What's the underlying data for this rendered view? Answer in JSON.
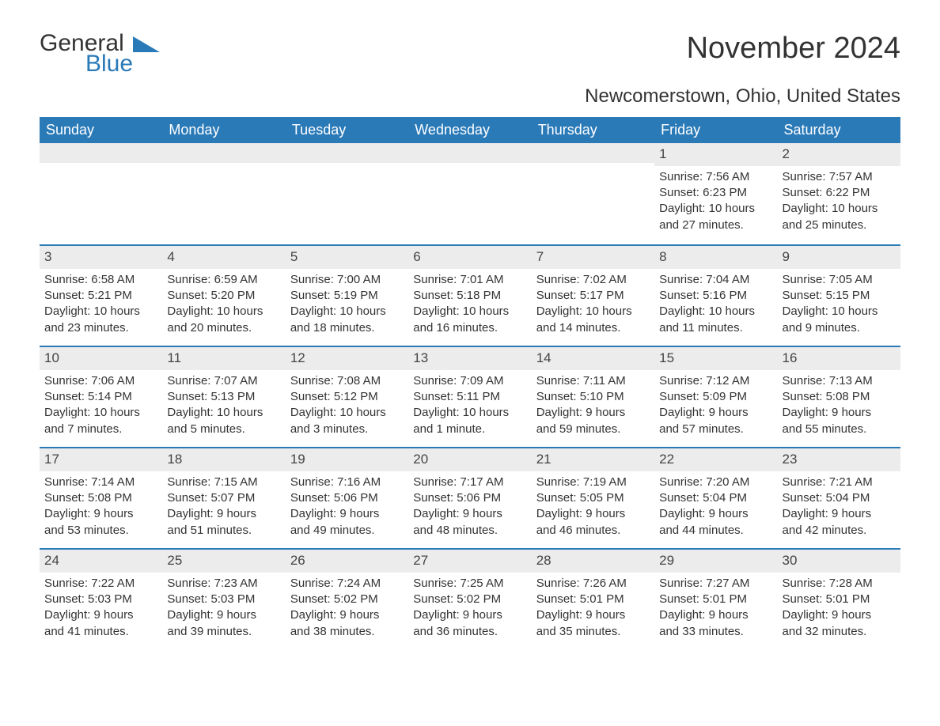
{
  "logo": {
    "general": "General",
    "blue": "Blue"
  },
  "title": "November 2024",
  "location": "Newcomerstown, Ohio, United States",
  "colors": {
    "header_bg": "#2a7ab8",
    "header_text": "#ffffff",
    "daynum_bg": "#ececec",
    "text": "#333333",
    "rule": "#2a7ab8"
  },
  "day_headers": [
    "Sunday",
    "Monday",
    "Tuesday",
    "Wednesday",
    "Thursday",
    "Friday",
    "Saturday"
  ],
  "weeks": [
    [
      null,
      null,
      null,
      null,
      null,
      {
        "n": "1",
        "sr": "Sunrise: 7:56 AM",
        "ss": "Sunset: 6:23 PM",
        "dl1": "Daylight: 10 hours",
        "dl2": "and 27 minutes."
      },
      {
        "n": "2",
        "sr": "Sunrise: 7:57 AM",
        "ss": "Sunset: 6:22 PM",
        "dl1": "Daylight: 10 hours",
        "dl2": "and 25 minutes."
      }
    ],
    [
      {
        "n": "3",
        "sr": "Sunrise: 6:58 AM",
        "ss": "Sunset: 5:21 PM",
        "dl1": "Daylight: 10 hours",
        "dl2": "and 23 minutes."
      },
      {
        "n": "4",
        "sr": "Sunrise: 6:59 AM",
        "ss": "Sunset: 5:20 PM",
        "dl1": "Daylight: 10 hours",
        "dl2": "and 20 minutes."
      },
      {
        "n": "5",
        "sr": "Sunrise: 7:00 AM",
        "ss": "Sunset: 5:19 PM",
        "dl1": "Daylight: 10 hours",
        "dl2": "and 18 minutes."
      },
      {
        "n": "6",
        "sr": "Sunrise: 7:01 AM",
        "ss": "Sunset: 5:18 PM",
        "dl1": "Daylight: 10 hours",
        "dl2": "and 16 minutes."
      },
      {
        "n": "7",
        "sr": "Sunrise: 7:02 AM",
        "ss": "Sunset: 5:17 PM",
        "dl1": "Daylight: 10 hours",
        "dl2": "and 14 minutes."
      },
      {
        "n": "8",
        "sr": "Sunrise: 7:04 AM",
        "ss": "Sunset: 5:16 PM",
        "dl1": "Daylight: 10 hours",
        "dl2": "and 11 minutes."
      },
      {
        "n": "9",
        "sr": "Sunrise: 7:05 AM",
        "ss": "Sunset: 5:15 PM",
        "dl1": "Daylight: 10 hours",
        "dl2": "and 9 minutes."
      }
    ],
    [
      {
        "n": "10",
        "sr": "Sunrise: 7:06 AM",
        "ss": "Sunset: 5:14 PM",
        "dl1": "Daylight: 10 hours",
        "dl2": "and 7 minutes."
      },
      {
        "n": "11",
        "sr": "Sunrise: 7:07 AM",
        "ss": "Sunset: 5:13 PM",
        "dl1": "Daylight: 10 hours",
        "dl2": "and 5 minutes."
      },
      {
        "n": "12",
        "sr": "Sunrise: 7:08 AM",
        "ss": "Sunset: 5:12 PM",
        "dl1": "Daylight: 10 hours",
        "dl2": "and 3 minutes."
      },
      {
        "n": "13",
        "sr": "Sunrise: 7:09 AM",
        "ss": "Sunset: 5:11 PM",
        "dl1": "Daylight: 10 hours",
        "dl2": "and 1 minute."
      },
      {
        "n": "14",
        "sr": "Sunrise: 7:11 AM",
        "ss": "Sunset: 5:10 PM",
        "dl1": "Daylight: 9 hours",
        "dl2": "and 59 minutes."
      },
      {
        "n": "15",
        "sr": "Sunrise: 7:12 AM",
        "ss": "Sunset: 5:09 PM",
        "dl1": "Daylight: 9 hours",
        "dl2": "and 57 minutes."
      },
      {
        "n": "16",
        "sr": "Sunrise: 7:13 AM",
        "ss": "Sunset: 5:08 PM",
        "dl1": "Daylight: 9 hours",
        "dl2": "and 55 minutes."
      }
    ],
    [
      {
        "n": "17",
        "sr": "Sunrise: 7:14 AM",
        "ss": "Sunset: 5:08 PM",
        "dl1": "Daylight: 9 hours",
        "dl2": "and 53 minutes."
      },
      {
        "n": "18",
        "sr": "Sunrise: 7:15 AM",
        "ss": "Sunset: 5:07 PM",
        "dl1": "Daylight: 9 hours",
        "dl2": "and 51 minutes."
      },
      {
        "n": "19",
        "sr": "Sunrise: 7:16 AM",
        "ss": "Sunset: 5:06 PM",
        "dl1": "Daylight: 9 hours",
        "dl2": "and 49 minutes."
      },
      {
        "n": "20",
        "sr": "Sunrise: 7:17 AM",
        "ss": "Sunset: 5:06 PM",
        "dl1": "Daylight: 9 hours",
        "dl2": "and 48 minutes."
      },
      {
        "n": "21",
        "sr": "Sunrise: 7:19 AM",
        "ss": "Sunset: 5:05 PM",
        "dl1": "Daylight: 9 hours",
        "dl2": "and 46 minutes."
      },
      {
        "n": "22",
        "sr": "Sunrise: 7:20 AM",
        "ss": "Sunset: 5:04 PM",
        "dl1": "Daylight: 9 hours",
        "dl2": "and 44 minutes."
      },
      {
        "n": "23",
        "sr": "Sunrise: 7:21 AM",
        "ss": "Sunset: 5:04 PM",
        "dl1": "Daylight: 9 hours",
        "dl2": "and 42 minutes."
      }
    ],
    [
      {
        "n": "24",
        "sr": "Sunrise: 7:22 AM",
        "ss": "Sunset: 5:03 PM",
        "dl1": "Daylight: 9 hours",
        "dl2": "and 41 minutes."
      },
      {
        "n": "25",
        "sr": "Sunrise: 7:23 AM",
        "ss": "Sunset: 5:03 PM",
        "dl1": "Daylight: 9 hours",
        "dl2": "and 39 minutes."
      },
      {
        "n": "26",
        "sr": "Sunrise: 7:24 AM",
        "ss": "Sunset: 5:02 PM",
        "dl1": "Daylight: 9 hours",
        "dl2": "and 38 minutes."
      },
      {
        "n": "27",
        "sr": "Sunrise: 7:25 AM",
        "ss": "Sunset: 5:02 PM",
        "dl1": "Daylight: 9 hours",
        "dl2": "and 36 minutes."
      },
      {
        "n": "28",
        "sr": "Sunrise: 7:26 AM",
        "ss": "Sunset: 5:01 PM",
        "dl1": "Daylight: 9 hours",
        "dl2": "and 35 minutes."
      },
      {
        "n": "29",
        "sr": "Sunrise: 7:27 AM",
        "ss": "Sunset: 5:01 PM",
        "dl1": "Daylight: 9 hours",
        "dl2": "and 33 minutes."
      },
      {
        "n": "30",
        "sr": "Sunrise: 7:28 AM",
        "ss": "Sunset: 5:01 PM",
        "dl1": "Daylight: 9 hours",
        "dl2": "and 32 minutes."
      }
    ]
  ]
}
